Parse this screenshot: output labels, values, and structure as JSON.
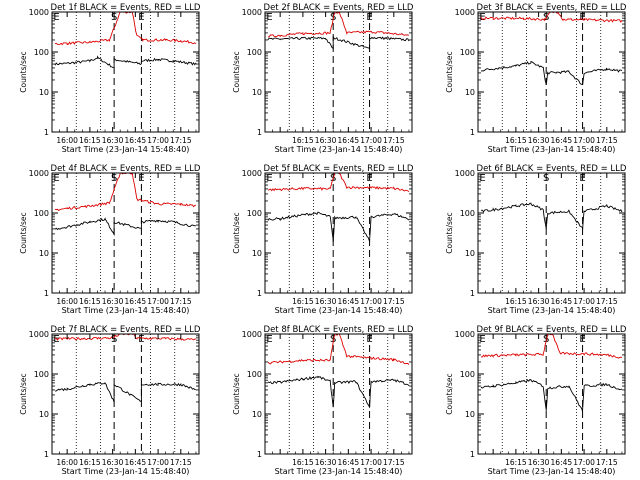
{
  "panel_title_suffix": "BLACK = Events, RED = LLD",
  "ylabel": "Counts/sec",
  "xlabel": "Start Time (23-Jan-14 15:48:40)",
  "tick_labels_wide": [
    "16:00",
    "16:15",
    "16:30",
    "16:45",
    "17:00",
    "17:15"
  ],
  "tick_labels_narrow": [
    "16:15",
    "16:30",
    "16:45",
    "17:00",
    "17:15"
  ],
  "y_tick_labels": [
    "1",
    "10",
    "100",
    "1000"
  ],
  "marker_labels": {
    "begin": "E",
    "start": "S",
    "end": "E"
  },
  "colors": {
    "events": "#000000",
    "lld": "#dd0000"
  },
  "chart_data": [
    {
      "type": "line",
      "title": "Det 1f",
      "x_ticks": "wide",
      "ylim": [
        1,
        1000
      ],
      "log_y": true,
      "markers": {
        "begin": "15:53",
        "start": "16:31",
        "end": "16:49"
      },
      "series": [
        {
          "name": "Events",
          "color": "#000000",
          "points": [
            [
              "15:52",
              50
            ],
            [
              "16:00",
              52
            ],
            [
              "16:15",
              60
            ],
            [
              "16:20",
              72
            ],
            [
              "16:31",
              40
            ],
            [
              "16:31",
              65
            ],
            [
              "16:49",
              50
            ],
            [
              "16:49",
              60
            ],
            [
              "17:00",
              65
            ],
            [
              "17:10",
              60
            ],
            [
              "17:25",
              50
            ]
          ]
        },
        {
          "name": "LLD",
          "color": "#dd0000",
          "points": [
            [
              "15:52",
              160
            ],
            [
              "16:00",
              165
            ],
            [
              "16:15",
              175
            ],
            [
              "16:28",
              200
            ],
            [
              "16:35",
              1000
            ],
            [
              "16:43",
              1000
            ],
            [
              "16:46",
              250
            ],
            [
              "16:50",
              200
            ],
            [
              "17:05",
              200
            ],
            [
              "17:15",
              190
            ],
            [
              "17:25",
              170
            ]
          ]
        }
      ]
    },
    {
      "type": "line",
      "title": "Det 2f",
      "x_ticks": "narrow",
      "ylim": [
        1,
        1000
      ],
      "log_y": true,
      "markers": {
        "begin": "15:53",
        "start": "16:35",
        "end": "16:59"
      },
      "series": [
        {
          "name": "Events",
          "color": "#000000",
          "points": [
            [
              "15:52",
              210
            ],
            [
              "16:00",
              210
            ],
            [
              "16:15",
              220
            ],
            [
              "16:30",
              220
            ],
            [
              "16:35",
              120
            ],
            [
              "16:35",
              230
            ],
            [
              "16:59",
              120
            ],
            [
              "16:59",
              230
            ],
            [
              "17:10",
              220
            ],
            [
              "17:25",
              200
            ]
          ]
        },
        {
          "name": "LLD",
          "color": "#dd0000",
          "points": [
            [
              "15:52",
              250
            ],
            [
              "16:00",
              260
            ],
            [
              "16:15",
              290
            ],
            [
              "16:33",
              300
            ],
            [
              "16:36",
              1000
            ],
            [
              "16:39",
              1000
            ],
            [
              "16:44",
              300
            ],
            [
              "17:00",
              320
            ],
            [
              "17:10",
              300
            ],
            [
              "17:25",
              260
            ]
          ]
        }
      ]
    },
    {
      "type": "line",
      "title": "Det 3f",
      "x_ticks": "narrow",
      "ylim": [
        1,
        1000
      ],
      "log_y": true,
      "markers": {
        "begin": "15:53",
        "start": "16:35",
        "end": "16:59"
      },
      "series": [
        {
          "name": "Events",
          "color": "#000000",
          "points": [
            [
              "15:52",
              35
            ],
            [
              "16:00",
              38
            ],
            [
              "16:15",
              45
            ],
            [
              "16:25",
              55
            ],
            [
              "16:33",
              40
            ],
            [
              "16:35",
              15
            ],
            [
              "16:36",
              30
            ],
            [
              "16:50",
              32
            ],
            [
              "16:59",
              15
            ],
            [
              "17:00",
              30
            ],
            [
              "17:15",
              38
            ],
            [
              "17:25",
              33
            ]
          ]
        },
        {
          "name": "LLD",
          "color": "#dd0000",
          "points": [
            [
              "15:52",
              700
            ],
            [
              "16:00",
              700
            ],
            [
              "16:20",
              690
            ],
            [
              "16:34",
              650
            ],
            [
              "16:38",
              1000
            ],
            [
              "16:43",
              1000
            ],
            [
              "16:46",
              650
            ],
            [
              "17:00",
              640
            ],
            [
              "17:25",
              600
            ]
          ]
        }
      ]
    },
    {
      "type": "line",
      "title": "Det 4f",
      "x_ticks": "wide",
      "ylim": [
        1,
        1000
      ],
      "log_y": true,
      "markers": {
        "begin": "15:53",
        "start": "16:31",
        "end": "16:49"
      },
      "series": [
        {
          "name": "Events",
          "color": "#000000",
          "points": [
            [
              "15:52",
              40
            ],
            [
              "16:00",
              45
            ],
            [
              "16:15",
              60
            ],
            [
              "16:25",
              70
            ],
            [
              "16:31",
              30
            ],
            [
              "16:31",
              60
            ],
            [
              "16:49",
              40
            ],
            [
              "16:49",
              60
            ],
            [
              "17:00",
              65
            ],
            [
              "17:10",
              60
            ],
            [
              "17:25",
              45
            ]
          ]
        },
        {
          "name": "LLD",
          "color": "#dd0000",
          "points": [
            [
              "15:52",
              120
            ],
            [
              "16:00",
              130
            ],
            [
              "16:15",
              150
            ],
            [
              "16:28",
              180
            ],
            [
              "16:35",
              1000
            ],
            [
              "16:43",
              1000
            ],
            [
              "16:46",
              220
            ],
            [
              "17:00",
              170
            ],
            [
              "17:15",
              165
            ],
            [
              "17:25",
              150
            ]
          ]
        }
      ]
    },
    {
      "type": "line",
      "title": "Det 5f",
      "x_ticks": "narrow",
      "ylim": [
        1,
        1000
      ],
      "log_y": true,
      "markers": {
        "begin": "15:53",
        "start": "16:35",
        "end": "16:59"
      },
      "series": [
        {
          "name": "Events",
          "color": "#000000",
          "points": [
            [
              "15:52",
              70
            ],
            [
              "16:00",
              72
            ],
            [
              "16:15",
              90
            ],
            [
              "16:25",
              100
            ],
            [
              "16:33",
              80
            ],
            [
              "16:35",
              20
            ],
            [
              "16:36",
              75
            ],
            [
              "16:50",
              80
            ],
            [
              "16:59",
              20
            ],
            [
              "17:00",
              80
            ],
            [
              "17:15",
              95
            ],
            [
              "17:25",
              70
            ]
          ]
        },
        {
          "name": "LLD",
          "color": "#dd0000",
          "points": [
            [
              "15:52",
              380
            ],
            [
              "16:00",
              390
            ],
            [
              "16:15",
              410
            ],
            [
              "16:33",
              400
            ],
            [
              "16:36",
              1000
            ],
            [
              "16:39",
              1000
            ],
            [
              "16:44",
              440
            ],
            [
              "17:00",
              430
            ],
            [
              "17:15",
              410
            ],
            [
              "17:25",
              350
            ]
          ]
        }
      ]
    },
    {
      "type": "line",
      "title": "Det 6f",
      "x_ticks": "narrow",
      "ylim": [
        1,
        1000
      ],
      "log_y": true,
      "markers": {
        "begin": "15:53",
        "start": "16:35",
        "end": "16:59"
      },
      "series": [
        {
          "name": "Events",
          "color": "#000000",
          "points": [
            [
              "15:52",
              110
            ],
            [
              "16:00",
              120
            ],
            [
              "16:15",
              150
            ],
            [
              "16:25",
              170
            ],
            [
              "16:33",
              120
            ],
            [
              "16:35",
              40
            ],
            [
              "16:36",
              100
            ],
            [
              "16:50",
              110
            ],
            [
              "16:59",
              40
            ],
            [
              "17:00",
              110
            ],
            [
              "17:15",
              150
            ],
            [
              "17:25",
              110
            ]
          ]
        }
      ]
    },
    {
      "type": "line",
      "title": "Det 7f",
      "x_ticks": "wide",
      "ylim": [
        1,
        1000
      ],
      "log_y": true,
      "markers": {
        "begin": "15:53",
        "start": "16:31",
        "end": "16:49"
      },
      "series": [
        {
          "name": "Events",
          "color": "#000000",
          "points": [
            [
              "15:52",
              40
            ],
            [
              "16:00",
              42
            ],
            [
              "16:15",
              55
            ],
            [
              "16:25",
              60
            ],
            [
              "16:31",
              20
            ],
            [
              "16:31",
              55
            ],
            [
              "16:49",
              20
            ],
            [
              "16:49",
              55
            ],
            [
              "17:00",
              55
            ],
            [
              "17:15",
              55
            ],
            [
              "17:25",
              40
            ]
          ]
        },
        {
          "name": "LLD",
          "color": "#dd0000",
          "points": [
            [
              "15:52",
              750
            ],
            [
              "16:00",
              760
            ],
            [
              "16:20",
              780
            ],
            [
              "16:30",
              800
            ],
            [
              "16:35",
              1000
            ],
            [
              "16:43",
              1000
            ],
            [
              "16:46",
              780
            ],
            [
              "17:05",
              770
            ],
            [
              "17:25",
              720
            ]
          ]
        }
      ]
    },
    {
      "type": "line",
      "title": "Det 8f",
      "x_ticks": "narrow",
      "ylim": [
        1,
        1000
      ],
      "log_y": true,
      "markers": {
        "begin": "15:53",
        "start": "16:35",
        "end": "16:59"
      },
      "series": [
        {
          "name": "Events",
          "color": "#000000",
          "points": [
            [
              "15:52",
              60
            ],
            [
              "16:00",
              62
            ],
            [
              "16:15",
              75
            ],
            [
              "16:25",
              85
            ],
            [
              "16:33",
              65
            ],
            [
              "16:35",
              15
            ],
            [
              "16:36",
              60
            ],
            [
              "16:50",
              65
            ],
            [
              "16:59",
              15
            ],
            [
              "17:00",
              65
            ],
            [
              "17:15",
              70
            ],
            [
              "17:25",
              55
            ]
          ]
        },
        {
          "name": "LLD",
          "color": "#dd0000",
          "points": [
            [
              "15:52",
              190
            ],
            [
              "16:00",
              200
            ],
            [
              "16:15",
              220
            ],
            [
              "16:33",
              220
            ],
            [
              "16:36",
              1000
            ],
            [
              "16:39",
              1000
            ],
            [
              "16:44",
              280
            ],
            [
              "17:00",
              250
            ],
            [
              "17:15",
              230
            ],
            [
              "17:25",
              180
            ]
          ]
        }
      ]
    },
    {
      "type": "line",
      "title": "Det 9f",
      "x_ticks": "narrow",
      "ylim": [
        1,
        1000
      ],
      "log_y": true,
      "markers": {
        "begin": "15:53",
        "start": "16:35",
        "end": "16:59"
      },
      "series": [
        {
          "name": "Events",
          "color": "#000000",
          "points": [
            [
              "15:52",
              45
            ],
            [
              "16:00",
              50
            ],
            [
              "16:15",
              60
            ],
            [
              "16:25",
              70
            ],
            [
              "16:33",
              50
            ],
            [
              "16:35",
              12
            ],
            [
              "16:36",
              45
            ],
            [
              "16:50",
              50
            ],
            [
              "16:59",
              12
            ],
            [
              "17:00",
              50
            ],
            [
              "17:15",
              55
            ],
            [
              "17:25",
              40
            ]
          ]
        },
        {
          "name": "LLD",
          "color": "#dd0000",
          "points": [
            [
              "15:52",
              280
            ],
            [
              "16:00",
              290
            ],
            [
              "16:15",
              300
            ],
            [
              "16:33",
              310
            ],
            [
              "16:36",
              1000
            ],
            [
              "16:39",
              1000
            ],
            [
              "16:44",
              330
            ],
            [
              "17:00",
              320
            ],
            [
              "17:15",
              300
            ],
            [
              "17:25",
              260
            ]
          ]
        }
      ]
    }
  ]
}
